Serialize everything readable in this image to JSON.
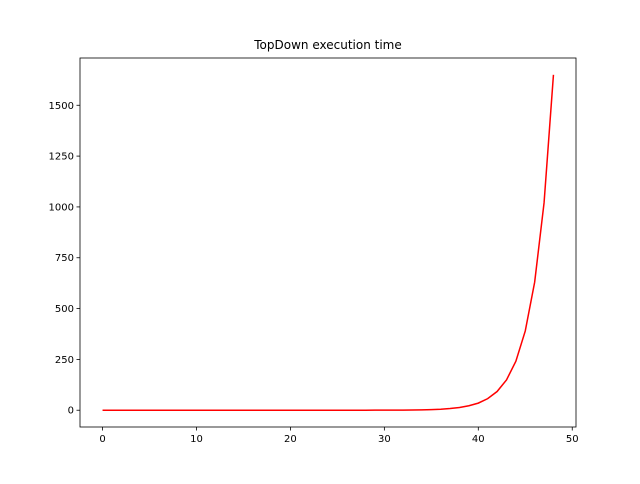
{
  "chart_data": {
    "type": "line",
    "title": "TopDown execution time",
    "x": [
      0,
      1,
      2,
      3,
      4,
      5,
      6,
      7,
      8,
      9,
      10,
      11,
      12,
      13,
      14,
      15,
      16,
      17,
      18,
      19,
      20,
      21,
      22,
      23,
      24,
      25,
      26,
      27,
      28,
      29,
      30,
      31,
      32,
      33,
      34,
      35,
      36,
      37,
      38,
      39,
      40,
      41,
      42,
      43,
      44,
      45,
      46,
      47,
      48
    ],
    "series": [
      {
        "color": "#ff0000",
        "values": [
          0,
          0,
          0,
          0,
          0,
          0,
          0,
          0,
          0,
          0,
          0,
          0,
          0,
          0,
          0,
          0,
          0,
          0,
          0,
          0,
          0,
          0,
          0,
          0,
          0,
          0,
          0,
          0,
          0.1,
          0.2,
          0.3,
          0.5,
          0.8,
          1.2,
          2.0,
          3.2,
          5.1,
          8.3,
          13.5,
          22,
          35,
          57,
          92,
          149,
          241,
          390,
          630,
          1020,
          1650
        ]
      }
    ],
    "xlim": [
      -2.4,
      50.4
    ],
    "xticks": [
      0,
      10,
      20,
      30,
      40,
      50
    ],
    "ylim": [
      -82.5,
      1732.5
    ],
    "yticks": [
      0,
      250,
      500,
      750,
      1000,
      1250,
      1500
    ]
  }
}
